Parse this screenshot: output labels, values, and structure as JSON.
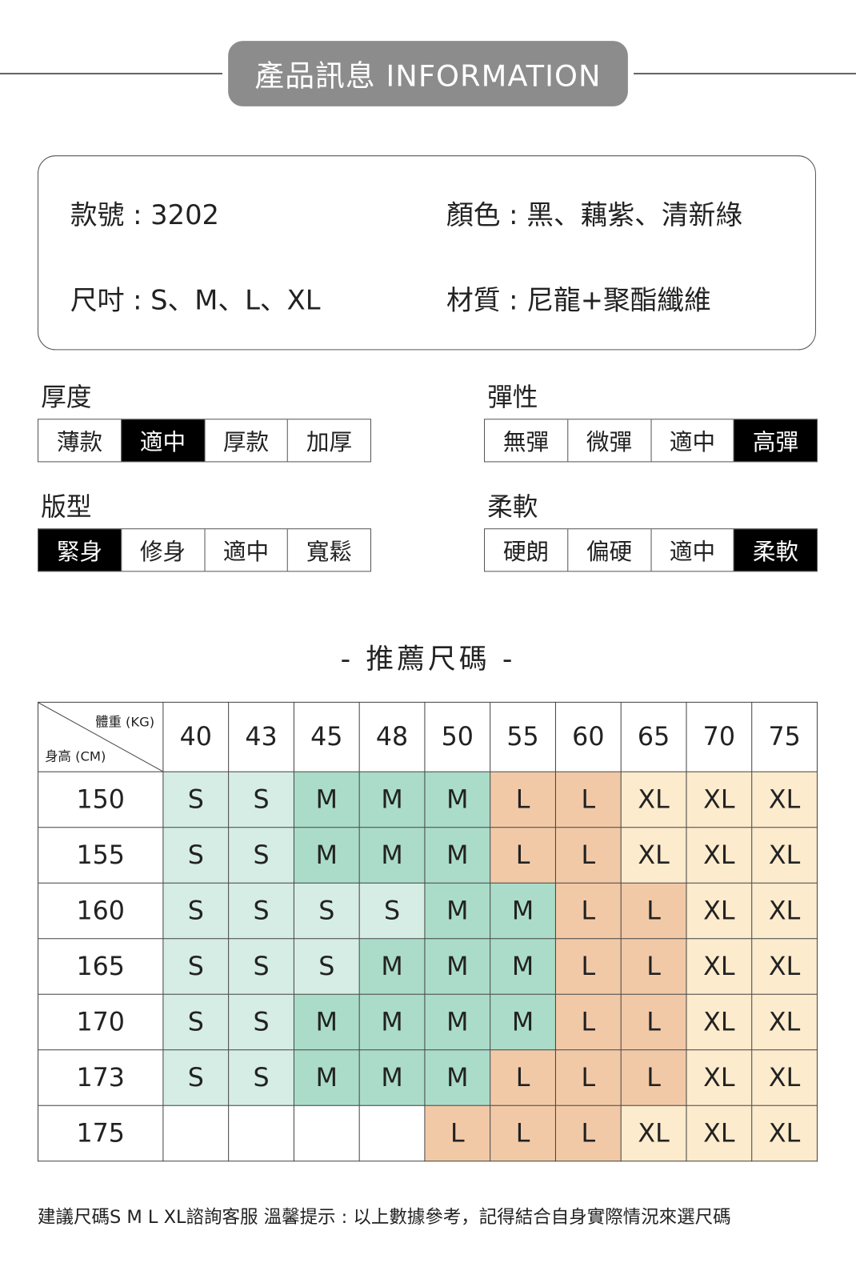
{
  "header": {
    "title": "產品訊息 INFORMATION"
  },
  "info": {
    "model": "款號 : 3202",
    "colors": "顏色 : 黑、藕紫、清新綠",
    "sizes": "尺吋 : S、M、L、XL",
    "material": "材質 : 尼龍+聚酯纖維"
  },
  "attributes": [
    {
      "label": "厚度",
      "options": [
        "薄款",
        "適中",
        "厚款",
        "加厚"
      ],
      "selected": 1
    },
    {
      "label": "彈性",
      "options": [
        "無彈",
        "微彈",
        "適中",
        "高彈"
      ],
      "selected": 3
    },
    {
      "label": "版型",
      "options": [
        "緊身",
        "修身",
        "適中",
        "寬鬆"
      ],
      "selected": 0
    },
    {
      "label": "柔軟",
      "options": [
        "硬朗",
        "偏硬",
        "適中",
        "柔軟"
      ],
      "selected": 3
    }
  ],
  "size_chart": {
    "title": "- 推薦尺碼 -",
    "weight_label": "體重 (KG)",
    "height_label": "身高 (CM)",
    "weights": [
      "40",
      "43",
      "45",
      "48",
      "50",
      "55",
      "60",
      "65",
      "70",
      "75"
    ],
    "rows": [
      {
        "height": "150",
        "sizes": [
          "S",
          "S",
          "M",
          "M",
          "M",
          "L",
          "L",
          "XL",
          "XL",
          "XL"
        ]
      },
      {
        "height": "155",
        "sizes": [
          "S",
          "S",
          "M",
          "M",
          "M",
          "L",
          "L",
          "XL",
          "XL",
          "XL"
        ]
      },
      {
        "height": "160",
        "sizes": [
          "S",
          "S",
          "S",
          "S",
          "M",
          "M",
          "L",
          "L",
          "XL",
          "XL"
        ]
      },
      {
        "height": "165",
        "sizes": [
          "S",
          "S",
          "S",
          "M",
          "M",
          "M",
          "L",
          "L",
          "XL",
          "XL"
        ]
      },
      {
        "height": "170",
        "sizes": [
          "S",
          "S",
          "M",
          "M",
          "M",
          "M",
          "L",
          "L",
          "XL",
          "XL"
        ]
      },
      {
        "height": "173",
        "sizes": [
          "S",
          "S",
          "M",
          "M",
          "M",
          "L",
          "L",
          "L",
          "XL",
          "XL"
        ]
      },
      {
        "height": "175",
        "sizes": [
          "",
          "",
          "",
          "",
          "L",
          "L",
          "L",
          "XL",
          "XL",
          "XL"
        ]
      }
    ],
    "colors": {
      "S": "#d6ede6",
      "M": "#aadcc9",
      "L": "#f2c9a7",
      "XL": "#fdebcd"
    }
  },
  "footer": "建議尺碼S M L XL諮詢客服 溫馨提示 : 以上數據參考，記得結合自身實際情況來選尺碼"
}
